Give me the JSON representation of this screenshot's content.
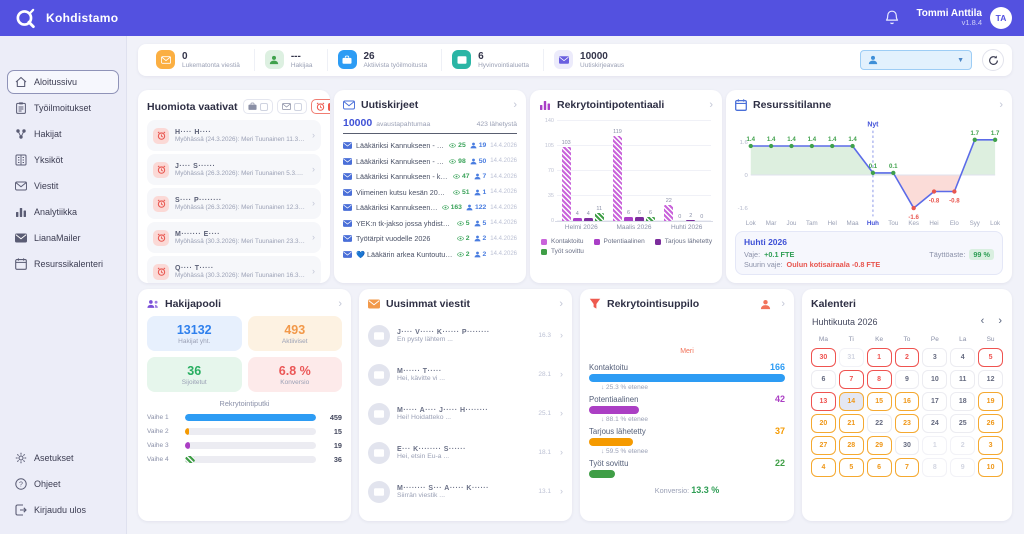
{
  "header": {
    "app_name": "Kohdistamo",
    "user_name": "Tommi Anttila",
    "version": "v1.8.4",
    "avatar_initials": "TA"
  },
  "sidebar": {
    "items": [
      {
        "label": "Aloitussivu",
        "icon": "home-icon",
        "active": true
      },
      {
        "label": "Työilmoitukset",
        "icon": "clipboard-icon",
        "active": false
      },
      {
        "label": "Hakijat",
        "icon": "applicants-icon",
        "active": false
      },
      {
        "label": "Yksiköt",
        "icon": "units-icon",
        "active": false
      },
      {
        "label": "Viestit",
        "icon": "envelope-icon",
        "active": false
      },
      {
        "label": "Analytiikka",
        "icon": "analytics-icon",
        "active": false
      },
      {
        "label": "LianaMailer",
        "icon": "mail-icon",
        "active": false
      },
      {
        "label": "Resurssikalenteri",
        "icon": "calendar-icon",
        "active": false
      }
    ],
    "footer_items": [
      {
        "label": "Asetukset",
        "icon": "gear-icon"
      },
      {
        "label": "Ohjeet",
        "icon": "help-icon"
      },
      {
        "label": "Kirjaudu ulos",
        "icon": "logout-icon"
      }
    ]
  },
  "stats_bar": {
    "stats": [
      {
        "value": "0",
        "label": "Lukematonta viestiä",
        "icon": "envelope-icon",
        "icon_bg": "#fbaf42",
        "icon_color": "#ffffff"
      },
      {
        "value": "---",
        "label": "Hakijaa",
        "icon": "person-icon",
        "icon_bg": "#ddf0e1",
        "icon_color": "#3fa14b"
      },
      {
        "value": "26",
        "label": "Aktiivista työilmoitusta",
        "icon": "briefcase-icon",
        "icon_bg": "#2d9cf4",
        "icon_color": "#ffffff"
      },
      {
        "value": "6",
        "label": "Hyvinvointialuetta",
        "icon": "building-icon",
        "icon_bg": "#2ab5a5",
        "icon_color": "#ffffff"
      },
      {
        "value": "10000",
        "label": "Uutiskirjeavaus",
        "icon": "mail-icon",
        "icon_bg": "#ecebfb",
        "icon_color": "#6a5fe0"
      }
    ],
    "filter_dropdown": {
      "icon": "person-icon",
      "value": ""
    }
  },
  "attention": {
    "title": "Huomiota vaativat",
    "filters": [
      {
        "icon": "briefcase-icon",
        "checked": false
      },
      {
        "icon": "envelope-icon",
        "checked": false
      },
      {
        "icon": "alarm-icon",
        "checked": true
      }
    ],
    "items": [
      {
        "name": "H···· H····",
        "subtitle": "Myöhässä (24.3.2026): Meri Tuunainen 11.3.2026, k..."
      },
      {
        "name": "J···· S······",
        "subtitle": "Myöhässä (26.3.2026): Meri Tuunainen 5.3.2026, kl..."
      },
      {
        "name": "S···· P········",
        "subtitle": "Myöhässä (26.3.2026): Meri Tuunainen 12.3.2026, k..."
      },
      {
        "name": "M······· E····",
        "subtitle": "Myöhässä (30.3.2026): Meri Tuunainen 23.3.2026, ..."
      },
      {
        "name": "Q···· T·····",
        "subtitle": "Myöhässä (30.3.2026): Meri Tuunainen 16.3.2026, ..."
      }
    ]
  },
  "newsletters": {
    "title": "Uutiskirjeet",
    "opens_value": "10000",
    "opens_label": "avaustapahtumaa",
    "sent_label": "423 lähetystä",
    "items": [
      {
        "title": "Lääkäriksi Kannukseen - kilpail..",
        "opens": "25",
        "clicks": "19",
        "date": "14.4.2026"
      },
      {
        "title": "Lääkäriksi Kannukseen - kilpail..",
        "opens": "98",
        "clicks": "50",
        "date": "14.4.2026"
      },
      {
        "title": "Lääkäriksi Kannukseen - kilpailu..",
        "opens": "47",
        "clicks": "7",
        "date": "14.4.2026"
      },
      {
        "title": "Viimeinen kutsu kesän 2026 töih..",
        "opens": "51",
        "clicks": "1",
        "date": "14.4.2026"
      },
      {
        "title": "Lääkäriksi Kannukseen - kilp..",
        "opens": "163",
        "clicks": "122",
        "date": "14.4.2026"
      },
      {
        "title": "YEK:n tk-jakso jossa yhdistyy vast..",
        "opens": "5",
        "clicks": "5",
        "date": "14.4.2026"
      },
      {
        "title": "Työtärpit vuodelle 2026",
        "opens": "2",
        "clicks": "2",
        "date": "14.4.2026"
      },
      {
        "title": "💙 Lääkärin arkea Kuntoutussaira..",
        "opens": "2",
        "clicks": "2",
        "date": "14.4.2026"
      }
    ]
  },
  "resource": {
    "info": {
      "month": "Huhti 2026",
      "vaje_label": "Vaje:",
      "vaje_value": "+0.1 FTE",
      "fill_label": "Täyttöaste:",
      "fill_value": "99 %",
      "max_label": "Suurin vaje:",
      "max_value": "Oulun kotisairaala -0.8 FTE"
    }
  },
  "hakijapooli": {
    "title": "Hakijapooli",
    "tiles": [
      {
        "value": "13132",
        "label": "Hakijat yht.",
        "bg": "#e7f0fd",
        "color": "#2f80ed"
      },
      {
        "value": "493",
        "label": "Aktiiviset",
        "bg": "#fdf2e2",
        "color": "#f2994a"
      },
      {
        "value": "36",
        "label": "Sijoitetut",
        "bg": "#e6f6ec",
        "color": "#27ae60"
      },
      {
        "value": "6.8 %",
        "label": "Konversio",
        "bg": "#fdeaea",
        "color": "#eb5757"
      }
    ]
  },
  "messages": {
    "title": "Uusimmat viestit",
    "items": [
      {
        "sender": "J···· V····· K······ P········",
        "preview": "En pysty lähtem ...",
        "date": "16.3"
      },
      {
        "sender": "M······ T·····",
        "preview": "Hei, kävitte vi ...",
        "date": "28.1"
      },
      {
        "sender": "M····· A···· J····· H········",
        "preview": "Hei! Hoidatteko ...",
        "date": "25.1"
      },
      {
        "sender": "E··· K········ S······",
        "preview": "Hei, etsin Eu-a ...",
        "date": "18.1"
      },
      {
        "sender": "M········ S··· A····· K······",
        "preview": "Siirrän viestik ...",
        "date": "13.1"
      }
    ]
  },
  "calendar": {
    "title": "Kalenteri",
    "month_label": "Huhtikuuta 2026",
    "day_headers": [
      "Ma",
      "Ti",
      "Ke",
      "To",
      "Pe",
      "La",
      "Su"
    ],
    "weeks": [
      [
        {
          "d": "30",
          "s": "red"
        },
        {
          "d": "31",
          "s": "muted"
        },
        {
          "d": "1",
          "s": "red"
        },
        {
          "d": "2",
          "s": "red"
        },
        {
          "d": "3",
          "s": "plain"
        },
        {
          "d": "4",
          "s": "plain"
        },
        {
          "d": "5",
          "s": "red"
        }
      ],
      [
        {
          "d": "6",
          "s": "plain"
        },
        {
          "d": "7",
          "s": "red"
        },
        {
          "d": "8",
          "s": "red"
        },
        {
          "d": "9",
          "s": "plain"
        },
        {
          "d": "10",
          "s": "plain"
        },
        {
          "d": "11",
          "s": "plain"
        },
        {
          "d": "12",
          "s": "plain"
        }
      ],
      [
        {
          "d": "13",
          "s": "red"
        },
        {
          "d": "14",
          "s": "today"
        },
        {
          "d": "15",
          "s": "orange"
        },
        {
          "d": "16",
          "s": "orange"
        },
        {
          "d": "17",
          "s": "plain"
        },
        {
          "d": "18",
          "s": "plain"
        },
        {
          "d": "19",
          "s": "orange"
        }
      ],
      [
        {
          "d": "20",
          "s": "orange"
        },
        {
          "d": "21",
          "s": "orange"
        },
        {
          "d": "22",
          "s": "plain"
        },
        {
          "d": "23",
          "s": "orange"
        },
        {
          "d": "24",
          "s": "plain"
        },
        {
          "d": "25",
          "s": "plain"
        },
        {
          "d": "26",
          "s": "orange"
        }
      ],
      [
        {
          "d": "27",
          "s": "orange"
        },
        {
          "d": "28",
          "s": "orange"
        },
        {
          "d": "29",
          "s": "orange"
        },
        {
          "d": "30",
          "s": "plain"
        },
        {
          "d": "1",
          "s": "muted"
        },
        {
          "d": "2",
          "s": "muted"
        },
        {
          "d": "3",
          "s": "orange"
        }
      ],
      [
        {
          "d": "4",
          "s": "orange"
        },
        {
          "d": "5",
          "s": "orange"
        },
        {
          "d": "6",
          "s": "orange"
        },
        {
          "d": "7",
          "s": "orange"
        },
        {
          "d": "8",
          "s": "muted"
        },
        {
          "d": "9",
          "s": "muted"
        },
        {
          "d": "10",
          "s": "orange"
        }
      ]
    ]
  },
  "chart_data": [
    {
      "id": "rekrytointipotentiaali",
      "type": "bar",
      "title": "Rekrytointipotentiaali",
      "categories": [
        "Helmi 2026",
        "Maalis 2026",
        "Huhti 2026"
      ],
      "series": [
        {
          "name": "Kontaktoitu",
          "color": "#c964da",
          "hatch": true,
          "values": [
            103,
            119,
            22
          ]
        },
        {
          "name": "Potentiaalinen",
          "color": "#a93fc6",
          "hatch": false,
          "values": [
            4,
            6,
            0
          ]
        },
        {
          "name": "Tarjous lähetetty",
          "color": "#7c2d9c",
          "hatch": false,
          "values": [
            4,
            6,
            2
          ]
        },
        {
          "name": "Työt sovittu",
          "color": "#3f9e46",
          "hatch": true,
          "values": [
            11,
            6,
            0
          ]
        }
      ],
      "ylim": [
        0,
        140
      ],
      "yticks": [
        0,
        35,
        70,
        105,
        140
      ],
      "grid": true,
      "legend_position": "bottom"
    },
    {
      "id": "resurssitilanne",
      "type": "line",
      "title": "Resurssitilanne",
      "x": [
        "Lok",
        "Mar",
        "Jou",
        "Tam",
        "Hel",
        "Maa",
        "Huh",
        "Tou",
        "Kes",
        "Hei",
        "Elo",
        "Syy",
        "Lok"
      ],
      "values": [
        1.4,
        1.4,
        1.4,
        1.4,
        1.4,
        1.4,
        0.1,
        0.1,
        -1.6,
        -0.8,
        -0.8,
        1.7,
        1.7
      ],
      "now_marker": {
        "index": 6,
        "label": "Nyt"
      },
      "yticks": [
        1.6,
        0,
        -1.6
      ],
      "line_color": "#5b6be8",
      "positive_color": "#3fa14b",
      "negative_color": "#e8564f",
      "area_positive": "#ddefdf",
      "area_negative": "#fbdcd8"
    },
    {
      "id": "rekrytointisuppilo",
      "type": "funnel",
      "title": "Rekrytointisuppilo",
      "group_label": "Meri",
      "stages": [
        {
          "name": "Kontaktoitu",
          "value": "166",
          "color": "#2d9cf4",
          "width_pct": 100
        },
        {
          "name": "Potentiaalinen",
          "value": "42",
          "color": "#ab3fc4",
          "width_pct": 25.3
        },
        {
          "name": "Tarjous lähetetty",
          "value": "37",
          "color": "#f59a00",
          "width_pct": 22.3
        },
        {
          "name": "Työt sovittu",
          "value": "22",
          "color": "#3f9e46",
          "width_pct": 13.3
        }
      ],
      "transitions": [
        "↓ 25.3 % etenee",
        "↓ 88.1 % etenee",
        "↓ 59.5 % etenee"
      ],
      "conversion_label": "Konversio:",
      "conversion_value": "13.3 %"
    },
    {
      "id": "rekrytointiputki",
      "type": "bar",
      "orientation": "horizontal",
      "title": "Rekrytointiputki",
      "categories": [
        "Vaihe 1",
        "Vaihe 2",
        "Vaihe 3",
        "Vaihe 4"
      ],
      "values": [
        459,
        15,
        19,
        36
      ],
      "colors": [
        "#2d9cf4",
        "#f59a00",
        "#ab3fc4",
        "#3f9e46"
      ],
      "hatch": [
        false,
        false,
        false,
        true
      ],
      "xlim": [
        0,
        459
      ]
    }
  ]
}
